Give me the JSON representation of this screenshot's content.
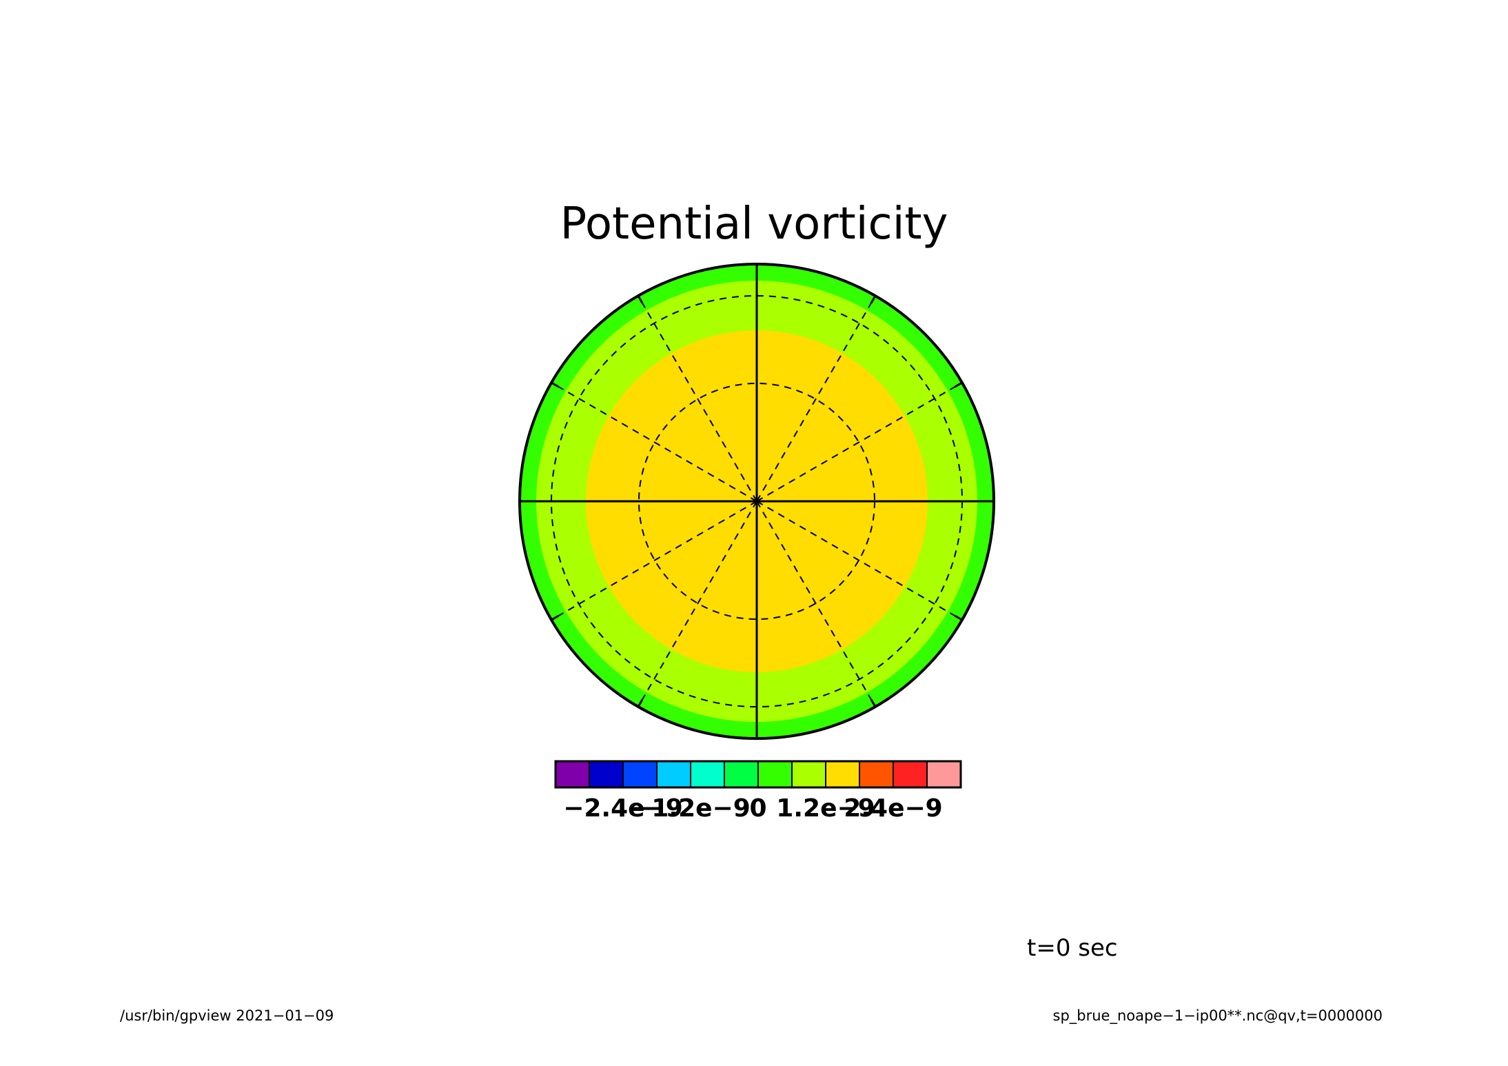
{
  "chart_data": {
    "type": "heatmap",
    "projection": "polar stereographic",
    "title": "Potential vorticity",
    "grid": true,
    "field_bands_from_outer_rim_to_center": [
      {
        "level_index": 6,
        "color": "#33ff00"
      },
      {
        "level_index": 7,
        "color": "#aaff00"
      },
      {
        "level_index": 8,
        "color": "#ffdd00"
      }
    ],
    "colorbar": {
      "orientation": "horizontal",
      "placement": "bottom",
      "colors": [
        "#7f00aa",
        "#0000cc",
        "#0044ff",
        "#00ccff",
        "#00ffcc",
        "#00ff44",
        "#33ff00",
        "#aaff00",
        "#ffdd00",
        "#ff5500",
        "#ff2222",
        "#ff9999"
      ],
      "tick_labels": [
        "−2.4e−9",
        "−1.2e−9",
        "0",
        "1.2e−9",
        "2.4e−9"
      ],
      "tick_values": [
        -2.4e-09,
        -1.2e-09,
        0,
        1.2e-09,
        2.4e-09
      ],
      "range": [
        -3.6e-09,
        3.6e-09
      ]
    }
  },
  "annotations": {
    "time": "t=0 sec"
  },
  "footer": {
    "program_and_date": "/usr/bin/gpview  2021−01−09",
    "source": "sp_brue_noape−1−ip00**.nc@qv,t=0000000"
  }
}
